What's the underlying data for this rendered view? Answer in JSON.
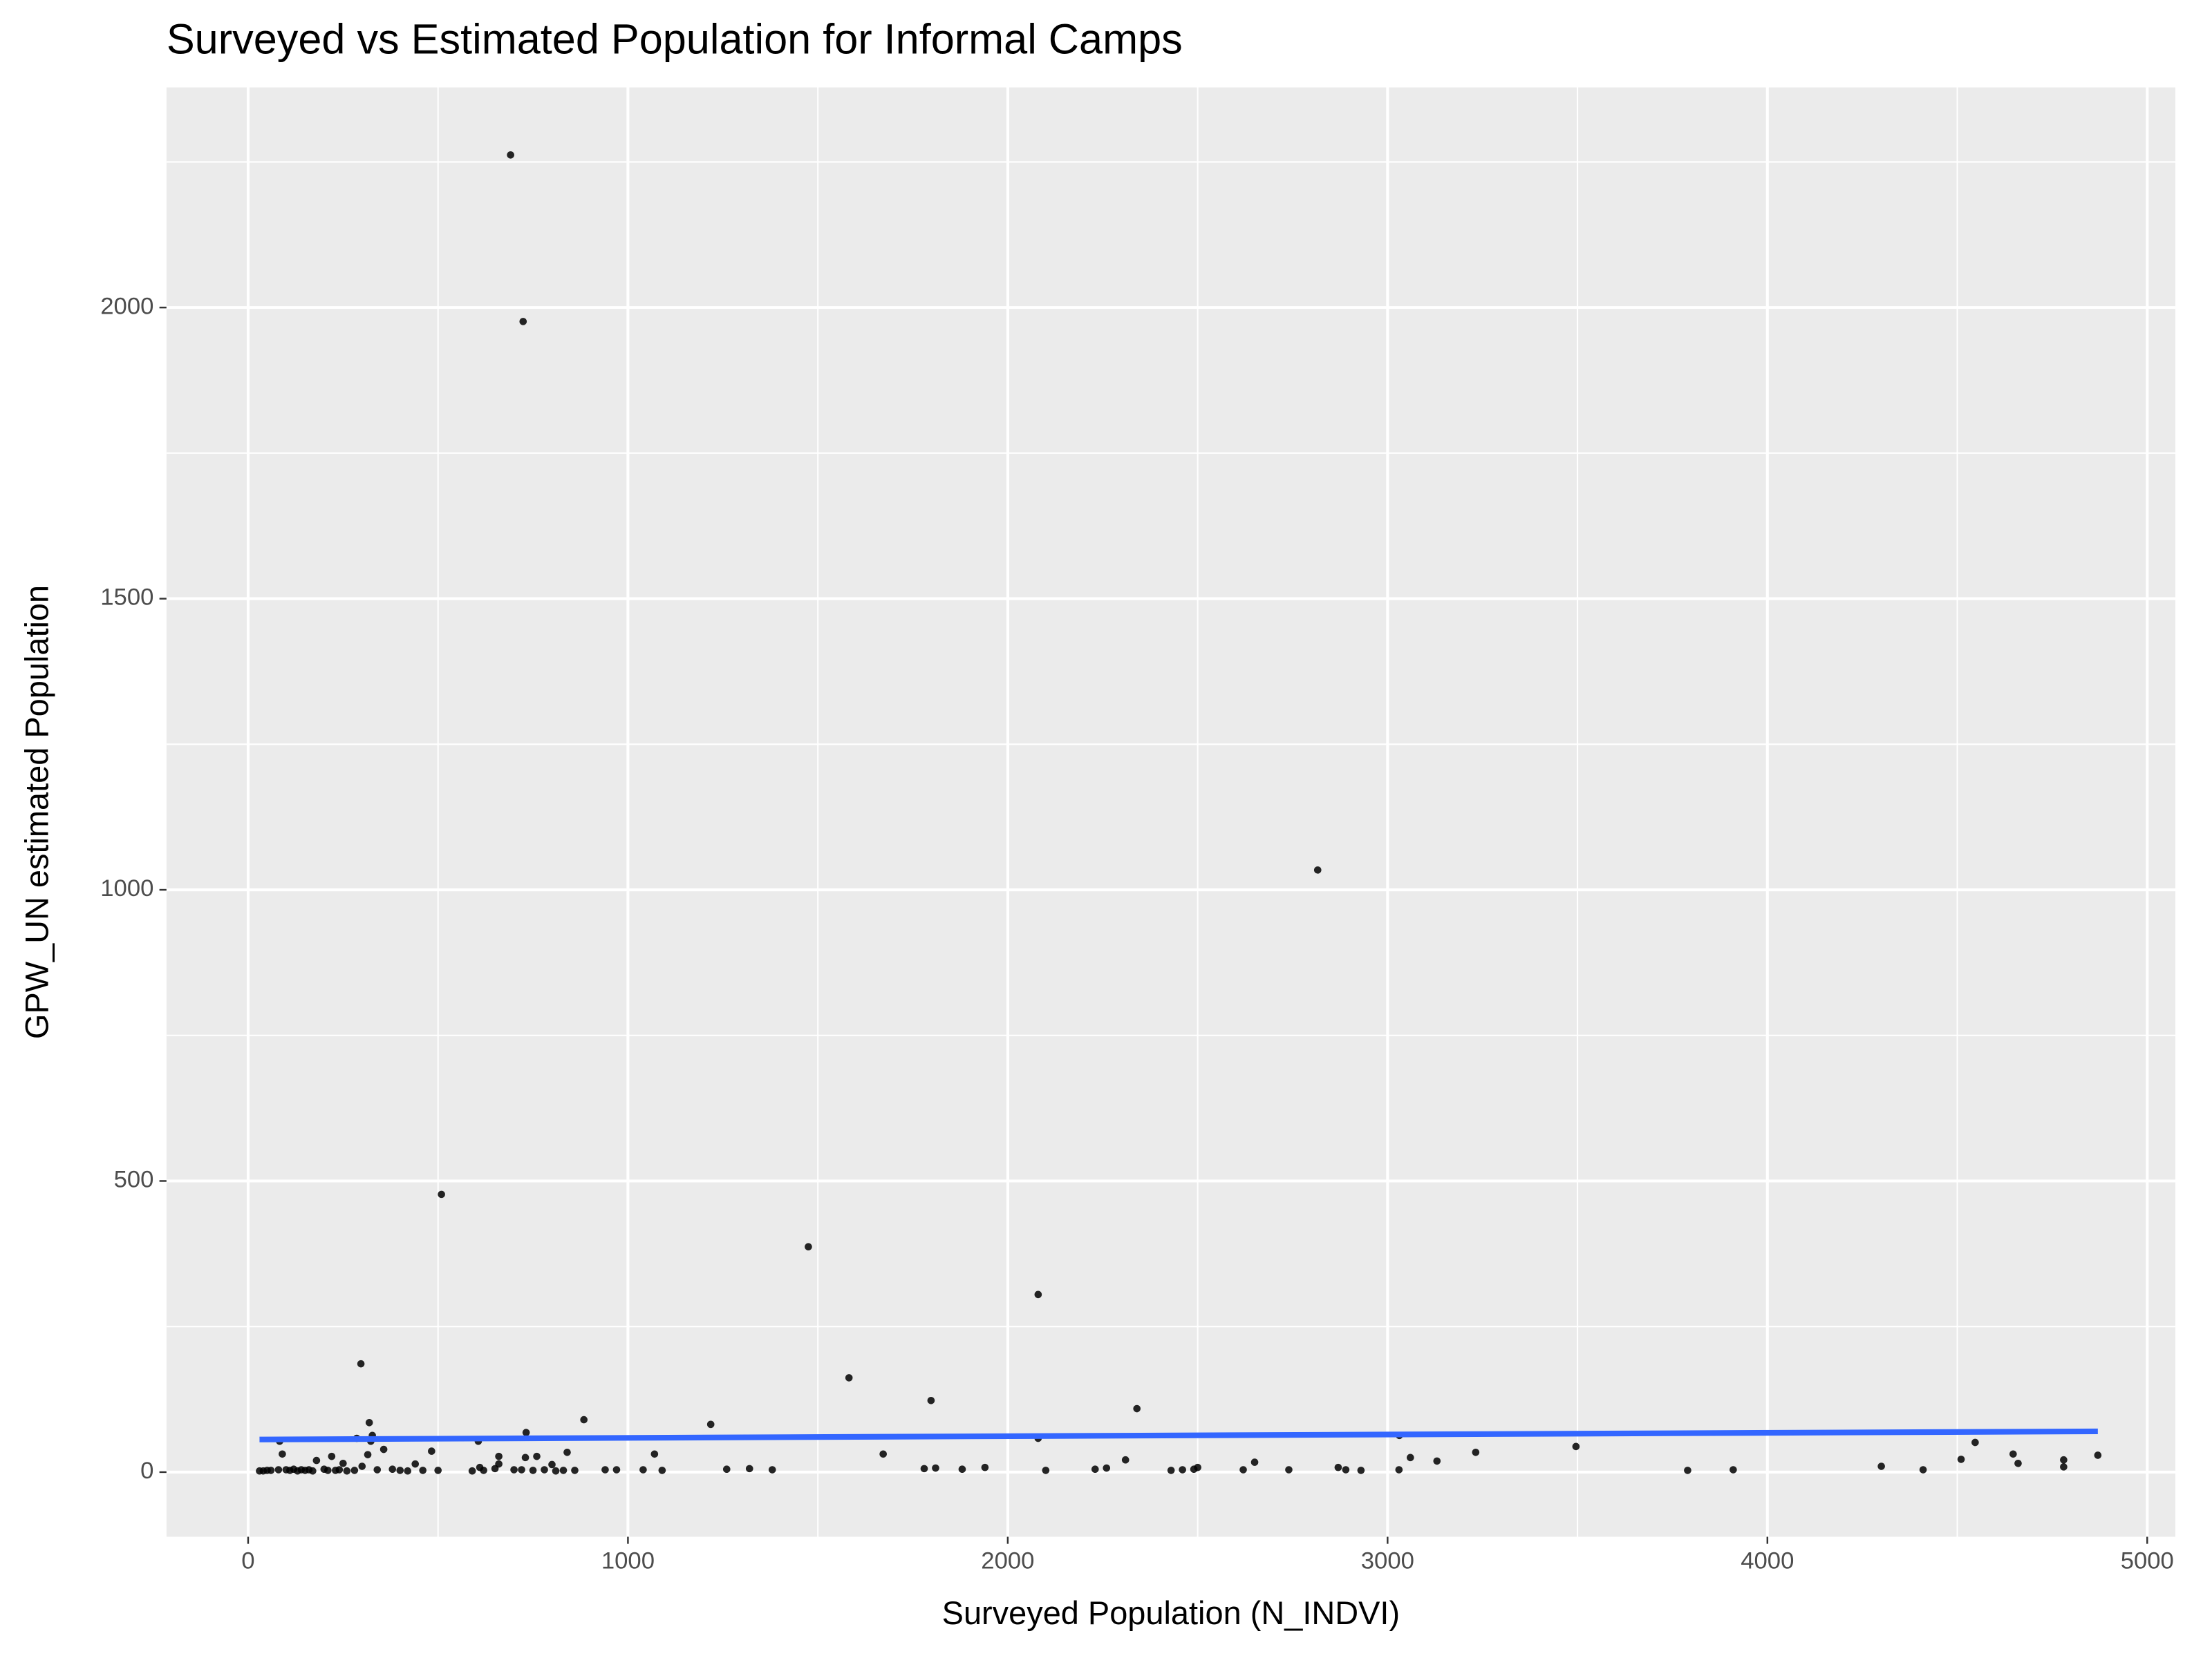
{
  "chart_data": {
    "type": "scatter",
    "title": "Surveyed vs Estimated Population for Informal Camps",
    "x_label": "Surveyed Population (N_INDVI)",
    "y_label": "GPW_UN estimated Population",
    "color": "#000000",
    "panel_color": "#ebebeb",
    "grid": true,
    "minor_grid": true,
    "xlim": [
      -215,
      5074
    ],
    "ylim": [
      -111,
      2378
    ],
    "xticks": [
      0,
      1000,
      2000,
      3000,
      4000,
      5000
    ],
    "yticks": [
      0,
      500,
      1000,
      1500,
      2000
    ],
    "x": [
      691,
      724,
      2816,
      509,
      1475,
      2080,
      297,
      1582,
      1798,
      2340,
      884,
      1218,
      319,
      732,
      3031,
      327,
      286,
      83,
      323,
      606,
      4547,
      2080,
      3496,
      357,
      483,
      3232,
      840,
      1672,
      1070,
      4647,
      4870,
      90,
      315,
      660,
      760,
      220,
      730,
      3060,
      4510,
      2310,
      4780,
      3130,
      2650,
      180,
      250,
      440,
      660,
      800,
      4660,
      4300,
      300,
      610,
      1940,
      2870,
      1810,
      2500,
      2260,
      1320,
      380,
      120,
      200,
      1260,
      2230,
      4780,
      160,
      60,
      100,
      140,
      240,
      340,
      500,
      650,
      720,
      780,
      830,
      860,
      940,
      970,
      1040,
      1090,
      1380,
      1780,
      1880,
      2100,
      2430,
      2460,
      2490,
      2620,
      2740,
      2890,
      2930,
      3030,
      3790,
      3910,
      4410,
      30,
      40,
      50,
      80,
      110,
      130,
      150,
      170,
      210,
      230,
      260,
      280,
      400,
      420,
      460,
      590,
      620,
      700,
      750,
      810
    ],
    "values": [
      2262,
      1976,
      1034,
      477,
      387,
      305,
      186,
      162,
      123,
      109,
      90,
      82,
      85,
      68,
      63,
      63,
      58,
      53,
      53,
      53,
      51,
      58,
      44,
      39,
      36,
      34,
      34,
      31,
      31,
      31,
      29,
      31,
      30,
      27,
      27,
      27,
      25,
      25,
      22,
      21,
      21,
      19,
      17,
      20,
      15,
      14,
      14,
      13,
      15,
      10,
      10,
      8,
      8,
      8,
      7,
      8,
      7,
      6,
      5,
      5,
      5,
      5,
      5,
      9,
      4,
      3,
      4,
      4,
      4,
      4,
      3,
      6,
      4,
      4,
      3,
      3,
      4,
      4,
      4,
      3,
      4,
      6,
      5,
      3,
      3,
      4,
      5,
      4,
      4,
      4,
      3,
      4,
      3,
      4,
      4,
      2,
      2,
      3,
      4,
      3,
      2,
      3,
      2,
      3,
      3,
      2,
      3,
      3,
      2,
      3,
      2,
      3,
      4,
      3,
      2
    ],
    "trend": {
      "x": [
        30,
        4870
      ],
      "values": [
        56,
        70
      ],
      "color": "#3366ff"
    }
  }
}
